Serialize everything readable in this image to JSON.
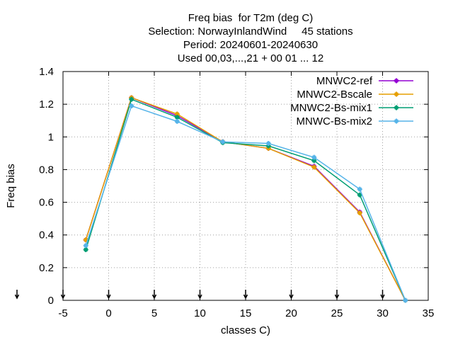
{
  "chart_data": {
    "type": "line",
    "title_lines": [
      "Freq bias  for T2m (deg C)",
      "Selection: NorwayInlandWind     45 stations",
      "Period: 20240601-20240630",
      "Used 00,03,...,21 + 00 01 ... 12"
    ],
    "xlabel": "classes C)",
    "ylabel": "Freq bias",
    "xlim": [
      -5,
      35
    ],
    "ylim": [
      0,
      1.4
    ],
    "xticks": [
      -5,
      0,
      5,
      10,
      15,
      20,
      25,
      30,
      35
    ],
    "yticks": [
      0,
      0.2,
      0.4,
      0.6,
      0.8,
      1,
      1.2,
      1.4
    ],
    "grid": true,
    "legend_position": "top-right",
    "x": [
      -2.5,
      2.5,
      7.5,
      12.5,
      17.5,
      22.5,
      27.5,
      32.5
    ],
    "series": [
      {
        "name": "MNWC2-ref",
        "color": "#9400d3",
        "values": [
          0.37,
          1.24,
          1.13,
          0.97,
          0.93,
          0.82,
          0.54,
          0.0
        ]
      },
      {
        "name": "MNWC2-Bscale",
        "color": "#e69f00",
        "values": [
          0.37,
          1.24,
          1.14,
          0.97,
          0.93,
          0.815,
          0.535,
          0.0
        ]
      },
      {
        "name": "MNWC2-Bs-mix1",
        "color": "#009e73",
        "values": [
          0.31,
          1.23,
          1.12,
          0.965,
          0.945,
          0.855,
          0.645,
          0.0
        ]
      },
      {
        "name": "MNWC-Bs-mix2",
        "color": "#56b4e9",
        "values": [
          0.335,
          1.19,
          1.095,
          0.97,
          0.96,
          0.875,
          0.68,
          0.0
        ]
      }
    ],
    "sample_markers_x": [
      -5,
      0,
      5,
      10,
      15,
      20,
      25,
      30
    ]
  }
}
